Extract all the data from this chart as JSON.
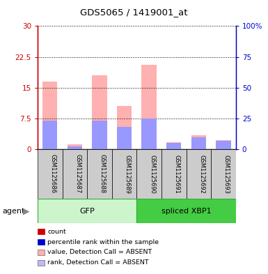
{
  "title": "GDS5065 / 1419001_at",
  "samples": [
    "GSM1125686",
    "GSM1125687",
    "GSM1125688",
    "GSM1125689",
    "GSM1125690",
    "GSM1125691",
    "GSM1125692",
    "GSM1125693"
  ],
  "groups": [
    {
      "name": "GFP",
      "indices": [
        0,
        1,
        2,
        3
      ],
      "color_light": "#ccf5cc",
      "color_dark": "#44bb44"
    },
    {
      "name": "spliced XBP1",
      "indices": [
        4,
        5,
        6,
        7
      ],
      "color_light": "#44cc44",
      "color_dark": "#44cc44"
    }
  ],
  "pink_values": [
    16.5,
    1.3,
    18.0,
    10.5,
    20.5,
    1.8,
    3.5,
    2.2
  ],
  "blue_values": [
    7.0,
    0.7,
    7.0,
    5.5,
    7.5,
    1.5,
    3.0,
    2.0
  ],
  "ylim_left": [
    0,
    30
  ],
  "ylim_right": [
    0,
    100
  ],
  "yticks_left": [
    0,
    7.5,
    15,
    22.5,
    30
  ],
  "ytick_labels_left": [
    "0",
    "7.5",
    "15",
    "22.5",
    "30"
  ],
  "yticks_right": [
    0,
    25,
    50,
    75,
    100
  ],
  "ytick_labels_right": [
    "0",
    "25",
    "50",
    "75",
    "100%"
  ],
  "left_axis_color": "#cc0000",
  "right_axis_color": "#0000cc",
  "bar_width": 0.6,
  "pink_color": "#ffb0b0",
  "blue_color": "#9898ff",
  "agent_label": "agent",
  "legend_items": [
    {
      "color": "#cc0000",
      "label": "count"
    },
    {
      "color": "#0000cc",
      "label": "percentile rank within the sample"
    },
    {
      "color": "#ffb0b0",
      "label": "value, Detection Call = ABSENT"
    },
    {
      "color": "#c0b8ff",
      "label": "rank, Detection Call = ABSENT"
    }
  ],
  "fig_width": 3.85,
  "fig_height": 3.93,
  "dpi": 100
}
